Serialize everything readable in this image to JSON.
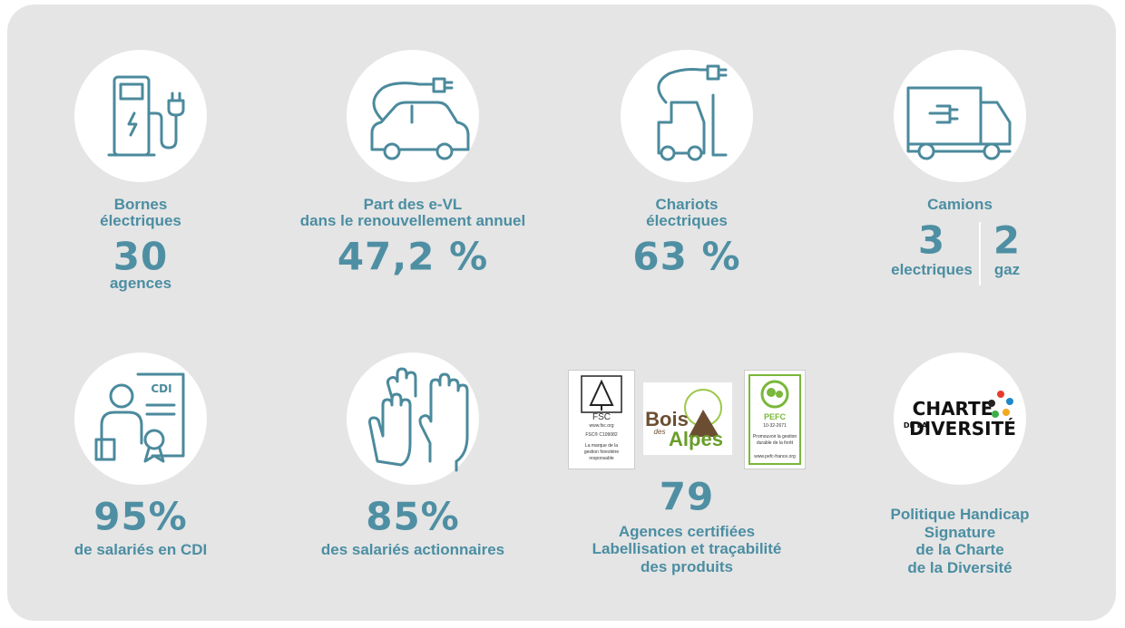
{
  "stats": {
    "bornes": {
      "label": [
        "Bornes",
        "électriques"
      ],
      "value": "30",
      "unit": "agences"
    },
    "evl": {
      "label": [
        "Part des e-VL",
        "dans le renouvellement annuel"
      ],
      "value": "47,2 %"
    },
    "chariots": {
      "label": [
        "Chariots",
        "électriques"
      ],
      "value": "63 %"
    },
    "camions": {
      "label": "Camions",
      "parts": [
        {
          "value": "3",
          "label": "electriques"
        },
        {
          "value": "2",
          "label": "gaz"
        }
      ]
    },
    "cdi": {
      "icon_text": "CDI",
      "value": "95%",
      "label": "de salariés en CDI"
    },
    "actionnaires": {
      "value": "85%",
      "label": "des salariés actionnaires"
    },
    "certifiees": {
      "logos": {
        "fsc": [
          "FSC",
          "www.fsc.org",
          "FSC® C109082",
          "La marque de la",
          "gestion forestière",
          "responsable"
        ],
        "bois": [
          "Bois",
          "des",
          "Alpes"
        ],
        "pefc": [
          "PEFC",
          "10-32-2671",
          "Promouvoir la gestion",
          "durable de la forêt",
          "www.pefc-france.org"
        ]
      },
      "value": "79",
      "label": [
        "Agences certifiées",
        "Labellisation et traçabilité",
        "des produits"
      ]
    },
    "diversite": {
      "logo": [
        "CHARTE",
        "DE LA",
        "DIVERSITÉ"
      ],
      "label": [
        "Politique Handicap",
        "Signature",
        "de la Charte",
        "de la Diversité"
      ]
    }
  }
}
